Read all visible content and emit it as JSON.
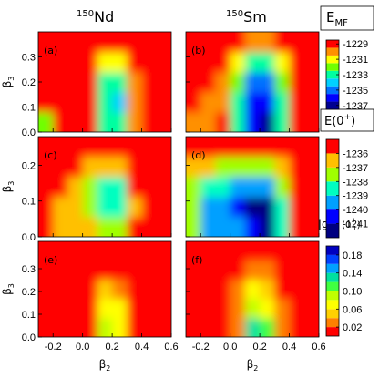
{
  "column_titles": [
    {
      "mass": "150",
      "element": "Nd"
    },
    {
      "mass": "150",
      "element": "Sm"
    }
  ],
  "colorbars": [
    {
      "label_parts": [
        "E",
        "MF"
      ],
      "zlim": [
        -1237.5,
        -1228.5
      ],
      "ticks": [
        -1229,
        -1231,
        -1233,
        -1235,
        -1237
      ],
      "colors": [
        "#000090",
        "#0000ff",
        "#0070ff",
        "#00d0ff",
        "#00ffa0",
        "#70ff00",
        "#ffff00",
        "#ff9000",
        "#ff0000"
      ]
    },
    {
      "label_parts": [
        "E(0",
        "+",
        ")"
      ],
      "zlim": [
        -1242,
        -1235
      ],
      "ticks": [
        -1236,
        -1237,
        -1238,
        -1239,
        -1240,
        -1241
      ],
      "colors": [
        "#000080",
        "#0000ff",
        "#00a0ff",
        "#00ffc0",
        "#a0ff00",
        "#ffc000",
        "#ff0000"
      ]
    },
    {
      "label_parts": [
        "|g",
        "J",
        "α",
        "|",
        "2",
        " (0",
        "+",
        "1",
        ")"
      ],
      "zlim": [
        0,
        0.2
      ],
      "ticks": [
        0.18,
        0.14,
        {
          "value": 0.1,
          "label": "0.10"
        },
        0.06,
        0.02
      ],
      "colors": [
        "#ff0000",
        "#ff8000",
        "#ffd000",
        "#ffff00",
        "#c0ff00",
        "#40ff40",
        "#00e0a0",
        "#00a0ff",
        "#0040ff",
        "#0000c0"
      ]
    }
  ],
  "chart_data": [
    {
      "type": "contour",
      "label": "(a)",
      "ylabel_parts": [
        "β",
        "3"
      ],
      "xlim": [
        -0.3,
        0.6
      ],
      "ylim": [
        0,
        0.4
      ],
      "xticks": [
        -0.2,
        {
          "value": 0,
          "label": "0.0"
        },
        0.2,
        0.4,
        0.6
      ],
      "yticks": [
        {
          "value": 0,
          "label": "0.0"
        },
        0.1,
        0.2,
        0.3
      ],
      "x": [
        -0.25,
        -0.15,
        -0.05,
        0.05,
        0.15,
        0.25,
        0.35,
        0.45,
        0.55
      ],
      "y": [
        0.04,
        0.12,
        0.2,
        0.28,
        0.36
      ],
      "z": [
        [
          -1232,
          -1229,
          -1228,
          -1229,
          -1233,
          -1233.5,
          -1230,
          -1228,
          -1228
        ],
        [
          -1229,
          -1228,
          -1228,
          -1229.5,
          -1233.5,
          -1234,
          -1230,
          -1228,
          -1228
        ],
        [
          -1228,
          -1228,
          -1228,
          -1229.5,
          -1233,
          -1233.5,
          -1230,
          -1228,
          -1228
        ],
        [
          -1228,
          -1228,
          -1228,
          -1229,
          -1231,
          -1231.5,
          -1229.5,
          -1228,
          -1228
        ],
        [
          -1228,
          -1228,
          -1228,
          -1228,
          -1229,
          -1229.5,
          -1228.5,
          -1228,
          -1228
        ]
      ]
    },
    {
      "type": "contour",
      "label": "(b)",
      "xlim": [
        -0.3,
        0.6
      ],
      "ylim": [
        0,
        0.4
      ],
      "xticks": [
        -0.2,
        {
          "value": 0,
          "label": "0.0"
        },
        0.2,
        0.4,
        0.6
      ],
      "yticks": [
        {
          "value": 0,
          "label": "0.0"
        },
        0.1,
        0.2,
        0.3
      ],
      "x": [
        -0.25,
        -0.15,
        -0.05,
        0.05,
        0.15,
        0.25,
        0.35,
        0.45,
        0.55
      ],
      "y": [
        0.04,
        0.12,
        0.2,
        0.28,
        0.36
      ],
      "z": [
        [
          -1230,
          -1230,
          -1229,
          -1233,
          -1236,
          -1237,
          -1233,
          -1229,
          -1228
        ],
        [
          -1229,
          -1230,
          -1230,
          -1233,
          -1236.5,
          -1236.5,
          -1233,
          -1229,
          -1228
        ],
        [
          -1228,
          -1229,
          -1230,
          -1232,
          -1235,
          -1235,
          -1232,
          -1229,
          -1228
        ],
        [
          -1228,
          -1228,
          -1229,
          -1231,
          -1233,
          -1233,
          -1231,
          -1228.5,
          -1228
        ],
        [
          -1228,
          -1228,
          -1228,
          -1229,
          -1230,
          -1230,
          -1229,
          -1228,
          -1228
        ]
      ]
    },
    {
      "type": "contour",
      "label": "(c)",
      "ylabel_parts": [
        "β",
        "3"
      ],
      "xlim": [
        -0.3,
        0.6
      ],
      "ylim": [
        0,
        0.28
      ],
      "xticks": [
        -0.2,
        {
          "value": 0,
          "label": "0.0"
        },
        0.2,
        0.4,
        0.6
      ],
      "yticks": [
        {
          "value": 0,
          "label": "0.0"
        },
        0.1,
        0.2
      ],
      "x": [
        -0.25,
        -0.15,
        -0.05,
        0.05,
        0.15,
        0.25,
        0.35,
        0.45,
        0.55
      ],
      "y": [
        0.028,
        0.084,
        0.14,
        0.196,
        0.252
      ],
      "z": [
        [
          -1235,
          -1236.5,
          -1236.5,
          -1237,
          -1238,
          -1238,
          -1236,
          -1235,
          -1235
        ],
        [
          -1236,
          -1237,
          -1236.5,
          -1237.5,
          -1239,
          -1239,
          -1236.5,
          -1235,
          -1235
        ],
        [
          -1235,
          -1236,
          -1237,
          -1237.5,
          -1238.5,
          -1238.5,
          -1236,
          -1235,
          -1235
        ],
        [
          -1235,
          -1235,
          -1235.5,
          -1236.5,
          -1237,
          -1236.5,
          -1235,
          -1235,
          -1235
        ],
        [
          -1235,
          -1235,
          -1235,
          -1235,
          -1235,
          -1235,
          -1235,
          -1235,
          -1235
        ]
      ]
    },
    {
      "type": "contour",
      "label": "(d)",
      "xlim": [
        -0.3,
        0.6
      ],
      "ylim": [
        0,
        0.28
      ],
      "xticks": [
        -0.2,
        {
          "value": 0,
          "label": "0.0"
        },
        0.2,
        0.4,
        0.6
      ],
      "yticks": [
        {
          "value": 0,
          "label": "0.0"
        },
        0.1,
        0.2
      ],
      "x": [
        -0.25,
        -0.15,
        -0.05,
        0.05,
        0.15,
        0.25,
        0.35,
        0.45,
        0.55
      ],
      "y": [
        0.028,
        0.084,
        0.14,
        0.196,
        0.252
      ],
      "z": [
        [
          -1238,
          -1239.5,
          -1239.5,
          -1240,
          -1241,
          -1241.5,
          -1239,
          -1236,
          -1235
        ],
        [
          -1238,
          -1239.5,
          -1240,
          -1240.5,
          -1241.5,
          -1241.5,
          -1239,
          -1236,
          -1235
        ],
        [
          -1237.5,
          -1238.5,
          -1239,
          -1239.5,
          -1240,
          -1240,
          -1238,
          -1235.5,
          -1235
        ],
        [
          -1236.5,
          -1237,
          -1237.5,
          -1238,
          -1238,
          -1237.5,
          -1236.5,
          -1235,
          -1235
        ],
        [
          -1235,
          -1235.5,
          -1236,
          -1236,
          -1236,
          -1236,
          -1235,
          -1235,
          -1235
        ]
      ]
    },
    {
      "type": "contour",
      "label": "(e)",
      "ylabel_parts": [
        "β",
        "3"
      ],
      "xlabel_parts": [
        "β",
        "2"
      ],
      "xlim": [
        -0.3,
        0.6
      ],
      "ylim": [
        0,
        0.42
      ],
      "xticks": [
        -0.2,
        {
          "value": 0,
          "label": "0.0"
        },
        0.2,
        0.4,
        0.6
      ],
      "yticks": [
        {
          "value": 0,
          "label": "0.0"
        },
        0.1,
        0.2,
        0.3
      ],
      "x": [
        -0.25,
        -0.15,
        -0.05,
        0.05,
        0.15,
        0.25,
        0.35,
        0.45,
        0.55
      ],
      "y": [
        0.042,
        0.126,
        0.21,
        0.294,
        0.378
      ],
      "z": [
        [
          0,
          0,
          0,
          0.02,
          0.09,
          0.08,
          0.02,
          0,
          0
        ],
        [
          0,
          0,
          0,
          0.02,
          0.07,
          0.06,
          0.02,
          0,
          0
        ],
        [
          0,
          0,
          0,
          0.015,
          0.05,
          0.04,
          0.015,
          0,
          0
        ],
        [
          0,
          0,
          0,
          0,
          0.02,
          0.02,
          0,
          0,
          0
        ],
        [
          0,
          0,
          0,
          0,
          0,
          0,
          0,
          0,
          0
        ]
      ]
    },
    {
      "type": "contour",
      "label": "(f)",
      "xlabel_parts": [
        "β",
        "2"
      ],
      "xlim": [
        -0.3,
        0.6
      ],
      "ylim": [
        0,
        0.42
      ],
      "xticks": [
        -0.2,
        {
          "value": 0,
          "label": "0.0"
        },
        0.2,
        0.4,
        0.6
      ],
      "yticks": [
        {
          "value": 0,
          "label": "0.0"
        },
        0.1,
        0.2,
        0.3
      ],
      "x": [
        -0.25,
        -0.15,
        -0.05,
        0.05,
        0.15,
        0.25,
        0.35,
        0.45,
        0.55
      ],
      "y": [
        0.042,
        0.126,
        0.21,
        0.294,
        0.378
      ],
      "z": [
        [
          0,
          0,
          0.01,
          0.04,
          0.13,
          0.1,
          0.03,
          0,
          0
        ],
        [
          0,
          0,
          0.01,
          0.04,
          0.09,
          0.08,
          0.03,
          0,
          0
        ],
        [
          0,
          0,
          0,
          0.03,
          0.06,
          0.05,
          0.02,
          0,
          0
        ],
        [
          0,
          0,
          0,
          0.01,
          0.03,
          0.025,
          0.01,
          0,
          0
        ],
        [
          0,
          0,
          0,
          0,
          0,
          0,
          0,
          0,
          0
        ]
      ]
    }
  ]
}
